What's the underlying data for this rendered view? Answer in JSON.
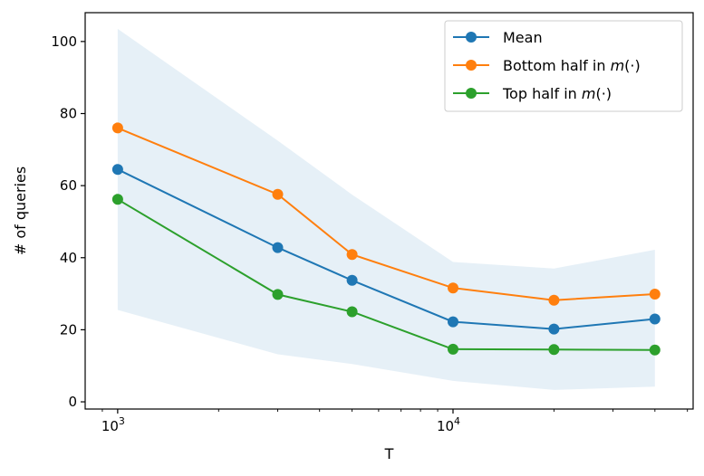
{
  "chart_data": {
    "type": "line",
    "xlabel": "T",
    "ylabel": "# of queries",
    "xscale": "log",
    "xlim": [
      800,
      52000
    ],
    "ylim": [
      -2,
      108
    ],
    "x": [
      1000,
      3000,
      5000,
      10000,
      20000,
      40000
    ],
    "x_ticks_major": [
      {
        "value": 1000,
        "base": "10",
        "exp": "3"
      },
      {
        "value": 10000,
        "base": "10",
        "exp": "4"
      }
    ],
    "y_ticks": [
      0,
      20,
      40,
      60,
      80,
      100
    ],
    "y_tick_labels": [
      "0",
      "20",
      "40",
      "60",
      "80",
      "100"
    ],
    "series": [
      {
        "name": "Mean",
        "color": "#1f77b4",
        "values": [
          64.5,
          42.8,
          33.7,
          22.2,
          20.2,
          23.0
        ]
      },
      {
        "name": "Bottom half in m(·)",
        "color": "#ff7f0e",
        "values": [
          76.0,
          57.6,
          40.9,
          31.6,
          28.2,
          29.9
        ]
      },
      {
        "name": "Top half in m(·)",
        "color": "#2ca02c",
        "values": [
          56.2,
          29.8,
          25.0,
          14.6,
          14.5,
          14.4
        ]
      }
    ],
    "legend": {
      "position": "top-right",
      "entries": [
        {
          "prefix": "Mean",
          "math": ""
        },
        {
          "prefix": "Bottom half in ",
          "math": "m",
          "suffix": "(·)"
        },
        {
          "prefix": "Top half in ",
          "math": "m",
          "suffix": "(·)"
        }
      ]
    },
    "band": {
      "color": "#1f77b4",
      "upper": [
        103.5,
        72.5,
        57.5,
        38.8,
        37.0,
        42.2
      ],
      "lower": [
        25.5,
        13.2,
        10.5,
        5.8,
        3.3,
        4.2
      ]
    },
    "grid": false
  }
}
